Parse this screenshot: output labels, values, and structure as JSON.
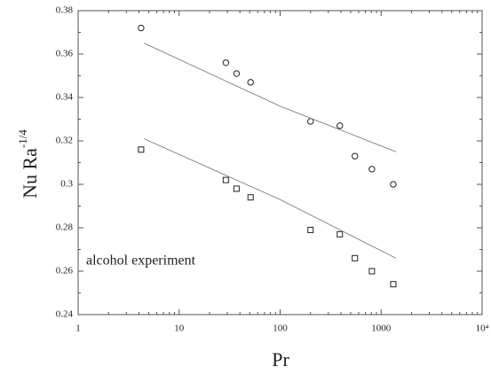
{
  "chart_data": {
    "type": "scatter",
    "xlabel": "Pr",
    "ylabel": "Nu Ra",
    "ylabel_superscript": "-1/4",
    "annotation": "alcohol experiment",
    "xscale": "log",
    "xlim": [
      1,
      10000
    ],
    "xticks": [
      1,
      10,
      100,
      1000,
      {
        "value": 10000,
        "label": "10⁴"
      }
    ],
    "ylim": [
      0.24,
      0.38
    ],
    "yticks": [
      0.24,
      0.26,
      0.28,
      0.3,
      0.32,
      0.34,
      0.36,
      0.38
    ],
    "series": [
      {
        "kind": "scatter",
        "marker": "circle",
        "color": "#222222",
        "x": [
          4.2,
          29,
          37,
          51,
          200,
          390,
          550,
          810,
          1320
        ],
        "values": [
          0.372,
          0.356,
          0.351,
          0.347,
          0.329,
          0.327,
          0.313,
          0.307,
          0.3
        ]
      },
      {
        "kind": "scatter",
        "marker": "square",
        "color": "#222222",
        "x": [
          4.2,
          29,
          37,
          51,
          200,
          390,
          550,
          810,
          1320
        ],
        "values": [
          0.316,
          0.302,
          0.298,
          0.294,
          0.279,
          0.277,
          0.266,
          0.26,
          0.254
        ]
      },
      {
        "kind": "line",
        "color": "#888888",
        "x": [
          4.5,
          100,
          1400
        ],
        "values": [
          0.365,
          0.336,
          0.315
        ]
      },
      {
        "kind": "line",
        "color": "#888888",
        "x": [
          4.5,
          100,
          1400
        ],
        "values": [
          0.321,
          0.293,
          0.266
        ]
      }
    ]
  }
}
